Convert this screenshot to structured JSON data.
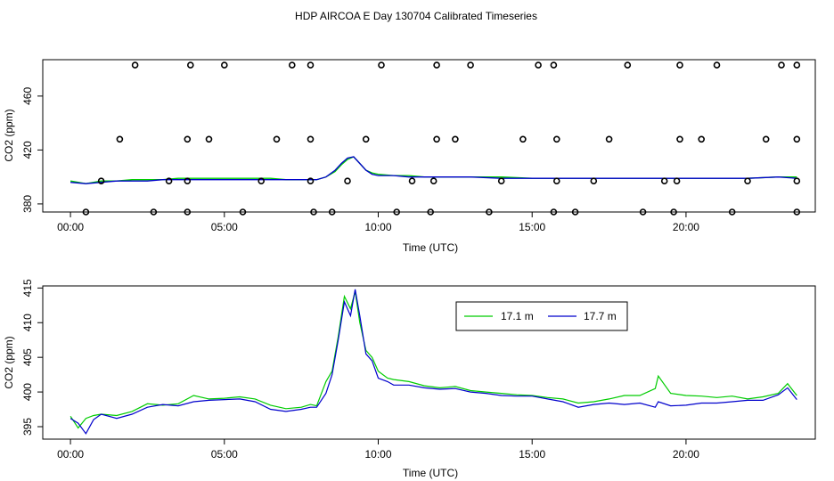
{
  "chart_data": [
    {
      "type": "scatter",
      "title": "HDP AIRCOA E  Day 130704  Calibrated Timeseries",
      "xlabel": "Time (UTC)",
      "ylabel": "CO2 (ppm)",
      "xlim": [
        -0.9,
        24.2
      ],
      "ylim": [
        374,
        487
      ],
      "x_ticks": [
        {
          "value": 0,
          "label": "00:00"
        },
        {
          "value": 5,
          "label": "05:00"
        },
        {
          "value": 10,
          "label": "10:00"
        },
        {
          "value": 15,
          "label": "15:00"
        },
        {
          "value": 20,
          "label": "20:00"
        }
      ],
      "y_ticks": [
        {
          "value": 380,
          "label": "380"
        },
        {
          "value": 420,
          "label": "420"
        },
        {
          "value": 460,
          "label": "460"
        }
      ],
      "ambient_series": [
        {
          "name": "17.1 m",
          "color": "#00cc00",
          "x": [
            0,
            0.5,
            1,
            1.5,
            2,
            2.5,
            3,
            3.5,
            4,
            4.5,
            5,
            5.5,
            6,
            6.5,
            7,
            7.5,
            8,
            8.3,
            8.6,
            8.8,
            9,
            9.2,
            9.4,
            9.6,
            9.8,
            10,
            10.5,
            11,
            11.5,
            12,
            13,
            14,
            15,
            16,
            17,
            18,
            19,
            20,
            21,
            22,
            23,
            23.6
          ],
          "y": [
            397,
            395,
            397,
            397,
            398,
            398,
            398,
            399,
            399,
            399,
            399,
            399,
            399,
            399,
            398,
            398,
            398,
            400,
            404,
            409,
            413,
            415,
            410,
            405,
            403,
            402,
            401,
            401,
            400,
            400,
            400,
            400,
            399,
            399,
            399,
            399,
            399,
            399,
            399,
            399,
            400,
            400
          ]
        },
        {
          "name": "17.7 m",
          "color": "#0000cc",
          "x": [
            0,
            0.5,
            1,
            1.5,
            2,
            2.5,
            3,
            3.5,
            4,
            4.5,
            5,
            5.5,
            6,
            6.5,
            7,
            7.5,
            8,
            8.3,
            8.6,
            8.8,
            9,
            9.2,
            9.4,
            9.6,
            9.8,
            10,
            10.5,
            11,
            11.5,
            12,
            13,
            14,
            15,
            16,
            17,
            18,
            19,
            20,
            21,
            22,
            23,
            23.6
          ],
          "y": [
            396,
            395,
            396,
            397,
            397,
            397,
            398,
            398,
            398,
            398,
            398,
            398,
            398,
            398,
            398,
            398,
            398,
            400,
            405,
            410,
            414,
            415,
            410,
            405,
            402,
            401,
            401,
            400,
            400,
            400,
            400,
            399,
            399,
            399,
            399,
            399,
            399,
            399,
            399,
            399,
            400,
            399
          ]
        }
      ],
      "reference_points": [
        {
          "x": 0.5,
          "y": 374
        },
        {
          "x": 2.7,
          "y": 374
        },
        {
          "x": 3.8,
          "y": 374
        },
        {
          "x": 5.6,
          "y": 374
        },
        {
          "x": 7.9,
          "y": 374
        },
        {
          "x": 8.5,
          "y": 374
        },
        {
          "x": 10.6,
          "y": 374
        },
        {
          "x": 11.7,
          "y": 374
        },
        {
          "x": 13.6,
          "y": 374
        },
        {
          "x": 15.7,
          "y": 374
        },
        {
          "x": 16.4,
          "y": 374
        },
        {
          "x": 18.6,
          "y": 374
        },
        {
          "x": 19.6,
          "y": 374
        },
        {
          "x": 21.5,
          "y": 374
        },
        {
          "x": 23.6,
          "y": 374
        },
        {
          "x": 1.0,
          "y": 397
        },
        {
          "x": 3.2,
          "y": 397
        },
        {
          "x": 3.8,
          "y": 397
        },
        {
          "x": 6.2,
          "y": 397
        },
        {
          "x": 7.8,
          "y": 397
        },
        {
          "x": 9.0,
          "y": 397
        },
        {
          "x": 11.1,
          "y": 397
        },
        {
          "x": 11.8,
          "y": 397
        },
        {
          "x": 14.0,
          "y": 397
        },
        {
          "x": 15.8,
          "y": 397
        },
        {
          "x": 17.0,
          "y": 397
        },
        {
          "x": 19.3,
          "y": 397
        },
        {
          "x": 19.7,
          "y": 397
        },
        {
          "x": 22.0,
          "y": 397
        },
        {
          "x": 23.6,
          "y": 397
        },
        {
          "x": 1.6,
          "y": 428
        },
        {
          "x": 3.8,
          "y": 428
        },
        {
          "x": 4.5,
          "y": 428
        },
        {
          "x": 6.7,
          "y": 428
        },
        {
          "x": 7.8,
          "y": 428
        },
        {
          "x": 9.6,
          "y": 428
        },
        {
          "x": 11.9,
          "y": 428
        },
        {
          "x": 12.5,
          "y": 428
        },
        {
          "x": 14.7,
          "y": 428
        },
        {
          "x": 15.8,
          "y": 428
        },
        {
          "x": 17.5,
          "y": 428
        },
        {
          "x": 19.8,
          "y": 428
        },
        {
          "x": 20.5,
          "y": 428
        },
        {
          "x": 22.6,
          "y": 428
        },
        {
          "x": 23.6,
          "y": 428
        },
        {
          "x": 2.1,
          "y": 483
        },
        {
          "x": 3.9,
          "y": 483
        },
        {
          "x": 5.0,
          "y": 483
        },
        {
          "x": 7.2,
          "y": 483
        },
        {
          "x": 7.8,
          "y": 483
        },
        {
          "x": 10.1,
          "y": 483
        },
        {
          "x": 11.9,
          "y": 483
        },
        {
          "x": 13.0,
          "y": 483
        },
        {
          "x": 15.2,
          "y": 483
        },
        {
          "x": 15.7,
          "y": 483
        },
        {
          "x": 18.1,
          "y": 483
        },
        {
          "x": 19.8,
          "y": 483
        },
        {
          "x": 21.0,
          "y": 483
        },
        {
          "x": 23.1,
          "y": 483
        },
        {
          "x": 23.6,
          "y": 483
        }
      ]
    },
    {
      "type": "line",
      "xlabel": "Time (UTC)",
      "ylabel": "CO2 (ppm)",
      "xlim": [
        -0.9,
        24.2
      ],
      "ylim": [
        393.2,
        415.3
      ],
      "legend_position": "top-right",
      "x_ticks": [
        {
          "value": 0,
          "label": "00:00"
        },
        {
          "value": 5,
          "label": "05:00"
        },
        {
          "value": 10,
          "label": "10:00"
        },
        {
          "value": 15,
          "label": "15:00"
        },
        {
          "value": 20,
          "label": "20:00"
        }
      ],
      "y_ticks": [
        {
          "value": 395,
          "label": "395"
        },
        {
          "value": 400,
          "label": "400"
        },
        {
          "value": 405,
          "label": "405"
        },
        {
          "value": 410,
          "label": "410"
        },
        {
          "value": 415,
          "label": "415"
        }
      ],
      "x": [
        0,
        0.25,
        0.5,
        0.75,
        1,
        1.5,
        2,
        2.5,
        3,
        3.5,
        4,
        4.5,
        5,
        5.5,
        6,
        6.5,
        7,
        7.5,
        7.8,
        8,
        8.3,
        8.5,
        8.7,
        8.9,
        9.1,
        9.25,
        9.4,
        9.6,
        9.8,
        10,
        10.3,
        10.5,
        11,
        11.5,
        12,
        12.5,
        13,
        13.5,
        14,
        14.5,
        15,
        15.5,
        16,
        16.5,
        17,
        17.5,
        18,
        18.5,
        19,
        19.1,
        19.5,
        20,
        20.5,
        21,
        21.5,
        22,
        22.5,
        23,
        23.3,
        23.6
      ],
      "series": [
        {
          "name": "17.1 m",
          "color": "#00cc00",
          "values": [
            396.5,
            394.8,
            396.2,
            396.6,
            396.8,
            396.6,
            397.2,
            398.3,
            398.1,
            398.3,
            399.5,
            399.0,
            399.1,
            399.3,
            399.0,
            398.1,
            397.6,
            397.8,
            398.2,
            398.0,
            401.5,
            403.0,
            408.0,
            413.8,
            412.0,
            414.5,
            410.0,
            406.0,
            405.0,
            403.0,
            402.0,
            401.8,
            401.5,
            400.9,
            400.6,
            400.8,
            400.2,
            400.0,
            399.8,
            399.6,
            399.5,
            399.2,
            399.0,
            398.4,
            398.6,
            399.0,
            399.5,
            399.5,
            400.5,
            402.3,
            399.8,
            399.5,
            399.4,
            399.2,
            399.4,
            399.0,
            399.3,
            399.8,
            401.2,
            399.5
          ]
        },
        {
          "name": "17.7 m",
          "color": "#0000cc",
          "values": [
            396.2,
            395.5,
            394.0,
            396.0,
            396.8,
            396.2,
            396.8,
            397.8,
            398.2,
            398.0,
            398.6,
            398.8,
            398.9,
            399.0,
            398.6,
            397.5,
            397.2,
            397.5,
            397.8,
            397.8,
            399.8,
            402.5,
            407.5,
            413.0,
            411.0,
            414.8,
            411.0,
            405.5,
            404.5,
            402.0,
            401.5,
            401.0,
            401.0,
            400.6,
            400.4,
            400.5,
            400.0,
            399.8,
            399.5,
            399.4,
            399.4,
            399.0,
            398.6,
            397.8,
            398.2,
            398.4,
            398.2,
            398.4,
            397.8,
            398.6,
            398.0,
            398.1,
            398.4,
            398.4,
            398.6,
            398.8,
            398.8,
            399.6,
            400.6,
            398.9
          ]
        }
      ]
    }
  ]
}
